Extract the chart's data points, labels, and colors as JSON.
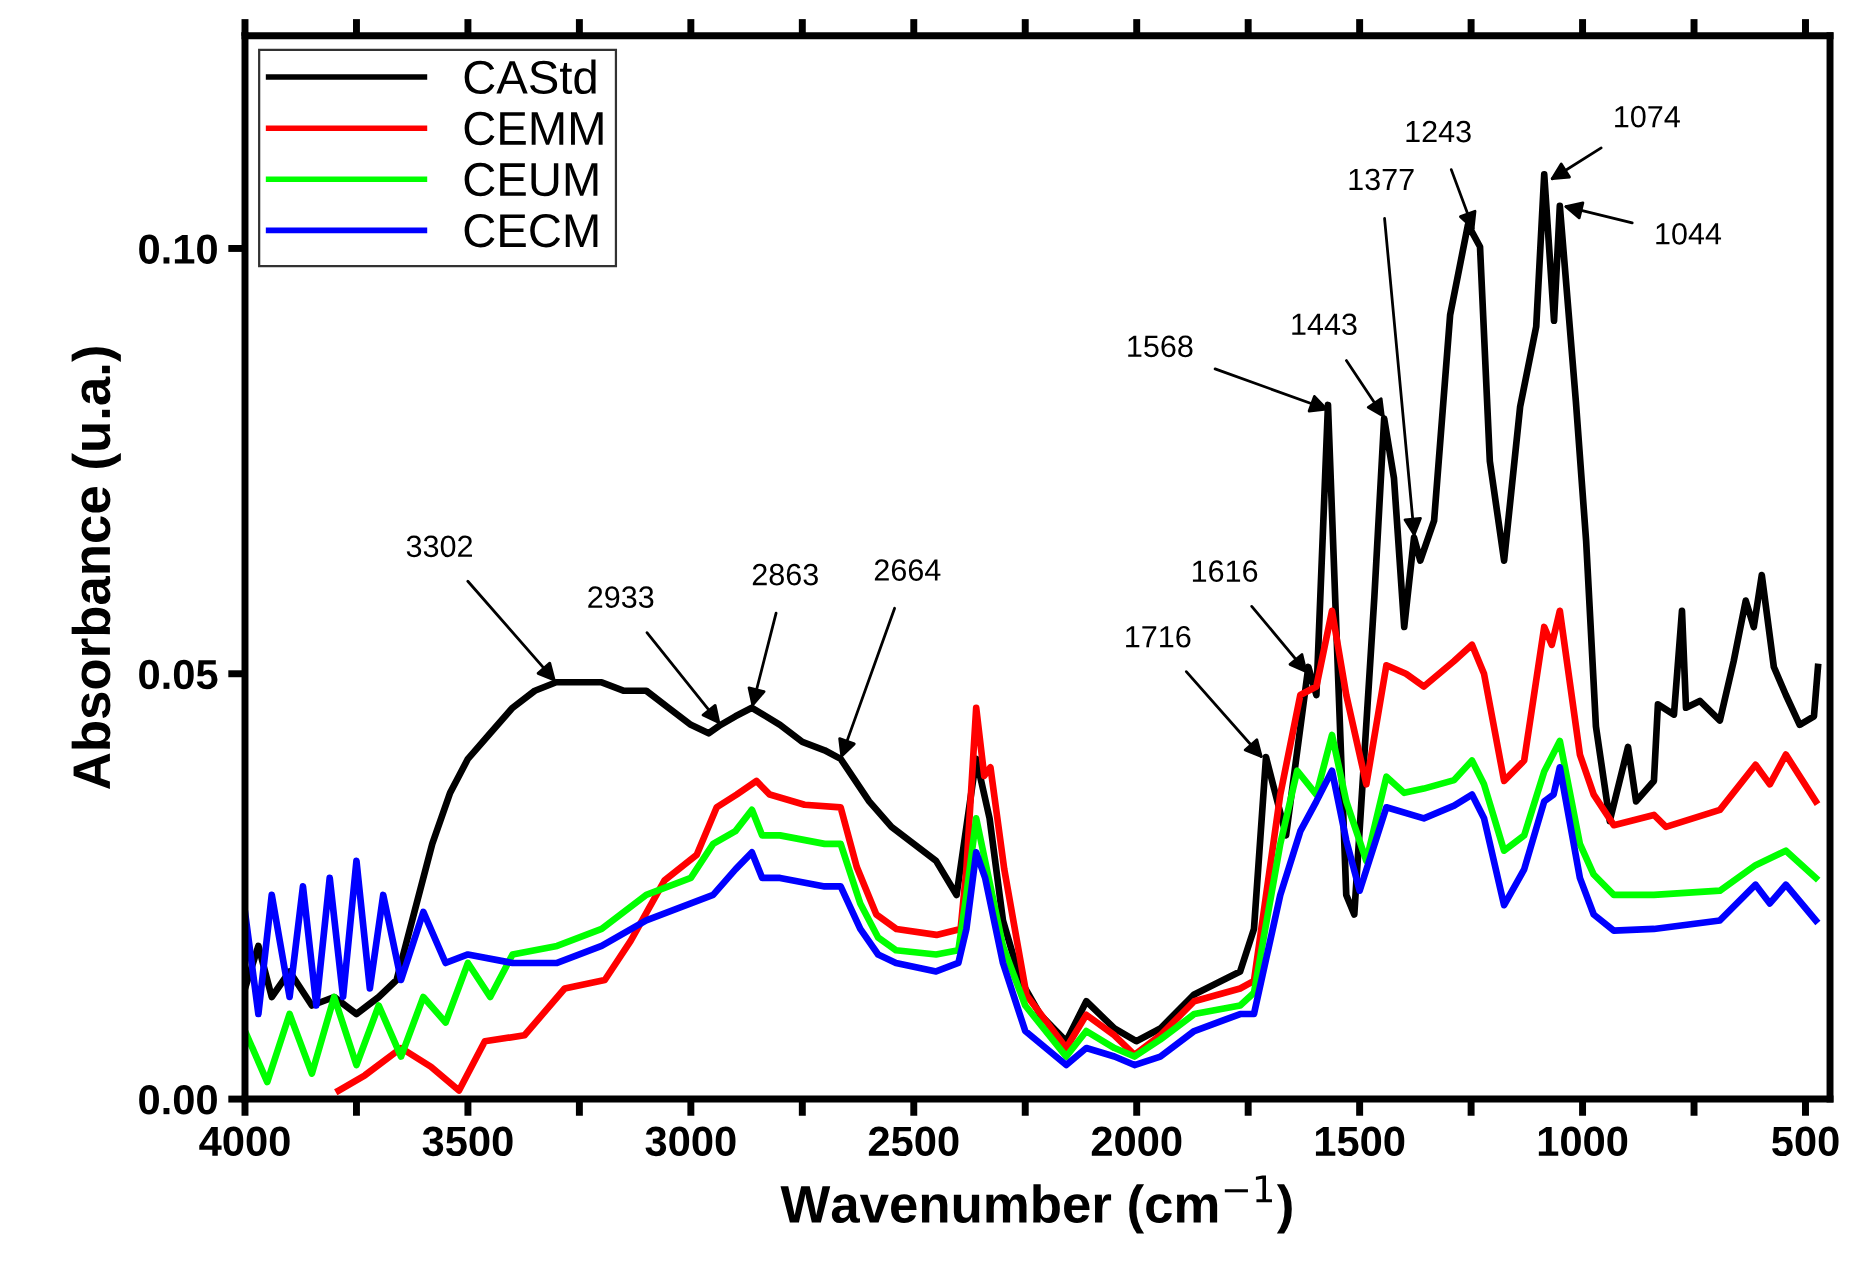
{
  "chart_data": {
    "type": "line",
    "xlabel": "Wavenumber (cm$^{−1}$)",
    "ylabel": "Absorbance (u.a.)",
    "xlim": [
      4000,
      445
    ],
    "ylim": [
      0,
      0.125
    ],
    "xticks": [
      4000,
      {
        "value": 3750,
        "label": null
      },
      3500,
      {
        "value": 3250,
        "label": null
      },
      3000,
      {
        "value": 2750,
        "label": null
      },
      2500,
      {
        "value": 2250,
        "label": null
      },
      2000,
      {
        "value": 1750,
        "label": null
      },
      1500,
      {
        "value": 1250,
        "label": null
      },
      1000,
      {
        "value": 750,
        "label": null
      },
      500
    ],
    "yticks": [
      {
        "value": 0,
        "label": "0.00"
      },
      {
        "value": 0.05,
        "label": "0.05"
      },
      {
        "value": 0.1,
        "label": "0.10"
      }
    ],
    "legend": "top left",
    "grid": false,
    "marker": "none",
    "line_style": "solid",
    "annotations": [
      {
        "text": "3302",
        "x": 3302,
        "y": 0.049
      },
      {
        "text": "2933",
        "x": 2933,
        "y": 0.044
      },
      {
        "text": "2863",
        "x": 2863,
        "y": 0.046
      },
      {
        "text": "2664",
        "x": 2664,
        "y": 0.04
      },
      {
        "text": "1716",
        "x": 1716,
        "y": 0.04
      },
      {
        "text": "1616",
        "x": 1616,
        "y": 0.05
      },
      {
        "text": "1568",
        "x": 1568,
        "y": 0.081
      },
      {
        "text": "1443",
        "x": 1443,
        "y": 0.08
      },
      {
        "text": "1377",
        "x": 1377,
        "y": 0.066
      },
      {
        "text": "1243",
        "x": 1243,
        "y": 0.102
      },
      {
        "text": "1074",
        "x": 1074,
        "y": 0.108
      },
      {
        "text": "1044",
        "x": 1044,
        "y": 0.105
      }
    ],
    "series": [
      {
        "name": "CAStd",
        "color": "#000000",
        "x": [
          4000,
          3970,
          3940,
          3900,
          3850,
          3800,
          3750,
          3700,
          3660,
          3620,
          3580,
          3540,
          3500,
          3450,
          3400,
          3350,
          3302,
          3250,
          3200,
          3150,
          3100,
          3050,
          3000,
          2960,
          2933,
          2900,
          2863,
          2800,
          2750,
          2700,
          2664,
          2600,
          2550,
          2500,
          2450,
          2404,
          2360,
          2330,
          2300,
          2261,
          2216,
          2158,
          2113,
          2050,
          2001,
          1947,
          1871,
          1768,
          1737,
          1710,
          1665,
          1615,
          1597,
          1571,
          1530,
          1512,
          1467,
          1445,
          1423,
          1400,
          1378,
          1364,
          1333,
          1297,
          1257,
          1230,
          1208,
          1176,
          1140,
          1104,
          1086,
          1064,
          1051,
          1015,
          992,
          970,
          939,
          898,
          880,
          840,
          831,
          795,
          777,
          768,
          737,
          692,
          661,
          634,
          616,
          598,
          571,
          544,
          513,
          481,
          472
        ],
        "values": [
          0.013,
          0.018,
          0.012,
          0.015,
          0.011,
          0.012,
          0.01,
          0.012,
          0.014,
          0.022,
          0.03,
          0.036,
          0.04,
          0.043,
          0.046,
          0.048,
          0.049,
          0.049,
          0.049,
          0.048,
          0.048,
          0.046,
          0.044,
          0.043,
          0.044,
          0.045,
          0.046,
          0.044,
          0.042,
          0.041,
          0.04,
          0.035,
          0.032,
          0.03,
          0.028,
          0.024,
          0.04,
          0.033,
          0.021,
          0.014,
          0.0099,
          0.0068,
          0.0115,
          0.0083,
          0.0068,
          0.0083,
          0.0123,
          0.015,
          0.02,
          0.0402,
          0.031,
          0.0508,
          0.0475,
          0.0816,
          0.024,
          0.0217,
          0.059,
          0.08,
          0.073,
          0.0555,
          0.066,
          0.0633,
          0.068,
          0.0922,
          0.1028,
          0.1002,
          0.075,
          0.0633,
          0.0814,
          0.0908,
          0.1087,
          0.0915,
          0.105,
          0.082,
          0.0656,
          0.0438,
          0.0327,
          0.0414,
          0.035,
          0.0374,
          0.0464,
          0.0452,
          0.0574,
          0.046,
          0.0468,
          0.0445,
          0.0515,
          0.0586,
          0.0555,
          0.0616,
          0.0508,
          0.0475,
          0.044,
          0.045,
          0.0508
        ]
      },
      {
        "name": "CEMM",
        "color": "#ff0000",
        "x": [
          3790,
          3731,
          3650,
          3583,
          3520,
          3462,
          3373,
          3283,
          3193,
          3135,
          3059,
          2987,
          2942,
          2897,
          2853,
          2823,
          2745,
          2664,
          2628,
          2584,
          2539,
          2449,
          2395,
          2382,
          2360,
          2342,
          2328,
          2297,
          2247,
          2158,
          2113,
          2050,
          2005,
          1947,
          1871,
          1768,
          1737,
          1678,
          1633,
          1597,
          1562,
          1530,
          1485,
          1440,
          1396,
          1356,
          1288,
          1248,
          1221,
          1176,
          1131,
          1086,
          1069,
          1051,
          1006,
          975,
          930,
          840,
          813,
          692,
          612,
          580,
          544,
          477
        ],
        "values": [
          0.001,
          0.0028,
          0.006,
          0.0038,
          0.001,
          0.0068,
          0.0075,
          0.013,
          0.014,
          0.0186,
          0.0257,
          0.0287,
          0.0343,
          0.0358,
          0.0374,
          0.0358,
          0.0346,
          0.0343,
          0.0273,
          0.0217,
          0.02,
          0.0193,
          0.02,
          0.027,
          0.046,
          0.038,
          0.039,
          0.027,
          0.0122,
          0.006,
          0.0099,
          0.0075,
          0.0052,
          0.0075,
          0.0115,
          0.013,
          0.0139,
          0.0358,
          0.0475,
          0.0485,
          0.0574,
          0.0475,
          0.037,
          0.051,
          0.05,
          0.0485,
          0.0515,
          0.0534,
          0.05,
          0.0374,
          0.0398,
          0.0555,
          0.0534,
          0.0574,
          0.0405,
          0.0358,
          0.0322,
          0.0334,
          0.032,
          0.034,
          0.0393,
          0.037,
          0.0405,
          0.035
        ]
      },
      {
        "name": "CEUM",
        "color": "#00ff00",
        "x": [
          4000,
          3950,
          3900,
          3850,
          3800,
          3750,
          3700,
          3650,
          3600,
          3550,
          3500,
          3450,
          3400,
          3300,
          3200,
          3100,
          3000,
          2950,
          2900,
          2863,
          2840,
          2800,
          2700,
          2664,
          2620,
          2580,
          2540,
          2450,
          2400,
          2382,
          2360,
          2340,
          2300,
          2250,
          2158,
          2113,
          2050,
          2005,
          1947,
          1871,
          1768,
          1737,
          1678,
          1640,
          1597,
          1562,
          1530,
          1485,
          1440,
          1400,
          1356,
          1288,
          1248,
          1221,
          1176,
          1131,
          1086,
          1051,
          1006,
          975,
          930,
          840,
          692,
          612,
          544,
          477
        ],
        "values": [
          0.008,
          0.002,
          0.01,
          0.003,
          0.012,
          0.004,
          0.011,
          0.005,
          0.012,
          0.009,
          0.016,
          0.012,
          0.017,
          0.018,
          0.02,
          0.024,
          0.026,
          0.03,
          0.0315,
          0.034,
          0.031,
          0.031,
          0.03,
          0.03,
          0.023,
          0.019,
          0.0175,
          0.017,
          0.0175,
          0.024,
          0.033,
          0.028,
          0.018,
          0.011,
          0.005,
          0.008,
          0.006,
          0.005,
          0.007,
          0.01,
          0.011,
          0.0125,
          0.03,
          0.0386,
          0.0358,
          0.0428,
          0.035,
          0.028,
          0.0379,
          0.036,
          0.0365,
          0.0375,
          0.0398,
          0.037,
          0.0292,
          0.031,
          0.0385,
          0.0421,
          0.03,
          0.0264,
          0.024,
          0.024,
          0.0245,
          0.0275,
          0.0292,
          0.026
        ]
      },
      {
        "name": "CECM",
        "color": "#0000ff",
        "x": [
          4000,
          3970,
          3940,
          3900,
          3870,
          3840,
          3810,
          3780,
          3750,
          3720,
          3690,
          3650,
          3600,
          3550,
          3500,
          3400,
          3300,
          3200,
          3100,
          3000,
          2950,
          2900,
          2863,
          2840,
          2800,
          2700,
          2664,
          2620,
          2580,
          2540,
          2450,
          2400,
          2382,
          2360,
          2340,
          2300,
          2250,
          2158,
          2113,
          2050,
          2005,
          1947,
          1871,
          1768,
          1737,
          1678,
          1633,
          1597,
          1562,
          1530,
          1500,
          1440,
          1356,
          1288,
          1248,
          1221,
          1176,
          1131,
          1086,
          1065,
          1051,
          1006,
          975,
          930,
          840,
          692,
          612,
          580,
          544,
          477
        ],
        "values": [
          0.022,
          0.01,
          0.024,
          0.012,
          0.025,
          0.011,
          0.026,
          0.012,
          0.028,
          0.013,
          0.024,
          0.014,
          0.022,
          0.016,
          0.017,
          0.016,
          0.016,
          0.018,
          0.021,
          0.023,
          0.024,
          0.027,
          0.029,
          0.026,
          0.026,
          0.025,
          0.025,
          0.02,
          0.017,
          0.016,
          0.015,
          0.016,
          0.02,
          0.029,
          0.026,
          0.016,
          0.008,
          0.004,
          0.006,
          0.005,
          0.004,
          0.005,
          0.008,
          0.01,
          0.01,
          0.024,
          0.0315,
          0.035,
          0.0386,
          0.0304,
          0.0245,
          0.0343,
          0.033,
          0.0345,
          0.0358,
          0.033,
          0.0228,
          0.027,
          0.035,
          0.0358,
          0.039,
          0.026,
          0.0217,
          0.0198,
          0.02,
          0.021,
          0.0252,
          0.023,
          0.0252,
          0.021
        ]
      }
    ]
  }
}
